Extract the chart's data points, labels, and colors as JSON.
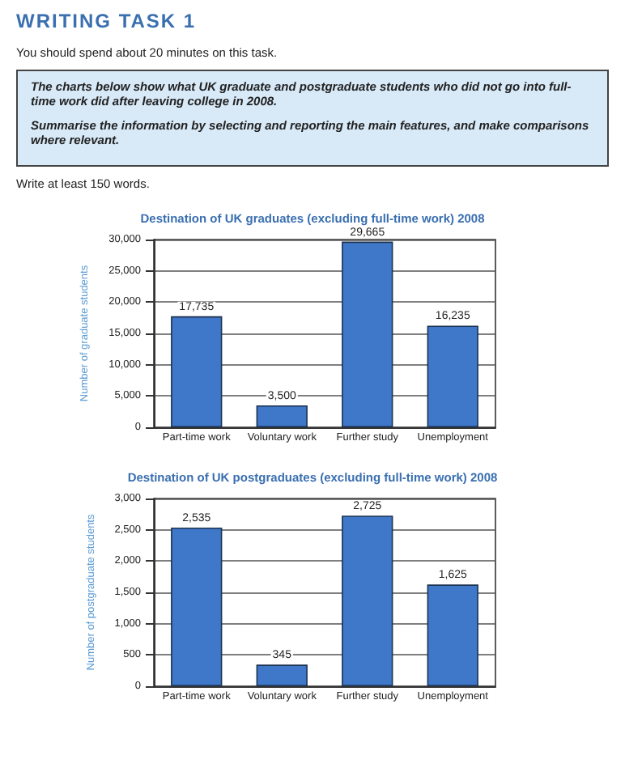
{
  "chart_data": [
    {
      "type": "bar",
      "title": "Destination of UK graduates (excluding full-time work) 2008",
      "ylabel": "Number of graduate students",
      "annotations": [
        "WRITING TASK 1",
        "You should spend about 20 minutes on this task.",
        "The charts below show what UK graduate and postgraduate students who did not go into full-time work did after leaving college in 2008.",
        "Summarise the information by selecting and reporting the main features, and make comparisons where relevant.",
        "Write at least 150 words."
      ],
      "categories": [
        "Part-time work",
        "Voluntary work",
        "Further study",
        "Unemployment"
      ],
      "values": [
        17735,
        3500,
        29665,
        16235
      ],
      "value_labels": [
        "17,735",
        "3,500",
        "29,665",
        "16,235"
      ],
      "color": "#3f77c9",
      "ylim": [
        0,
        30000
      ],
      "yticks": [
        {
          "value": 0,
          "label": "0"
        },
        {
          "value": 5000,
          "label": "5,000"
        },
        {
          "value": 10000,
          "label": "10,000"
        },
        {
          "value": 15000,
          "label": "15,000"
        },
        {
          "value": 20000,
          "label": "20,000"
        },
        {
          "value": 25000,
          "label": "25,000"
        },
        {
          "value": 30000,
          "label": "30,000"
        }
      ],
      "grid": "y"
    },
    {
      "type": "bar",
      "title": "Destination of UK postgraduates (excluding full-time work) 2008",
      "ylabel": "Number of postgraduate students",
      "categories": [
        "Part-time work",
        "Voluntary work",
        "Further study",
        "Unemployment"
      ],
      "values": [
        2535,
        345,
        2725,
        1625
      ],
      "value_labels": [
        "2,535",
        "345",
        "2,725",
        "1,625"
      ],
      "color": "#3f77c9",
      "ylim": [
        0,
        3000
      ],
      "yticks": [
        {
          "value": 0,
          "label": "0"
        },
        {
          "value": 500,
          "label": "500"
        },
        {
          "value": 1000,
          "label": "1,000"
        },
        {
          "value": 1500,
          "label": "1,500"
        },
        {
          "value": 2000,
          "label": "2,000"
        },
        {
          "value": 2500,
          "label": "2,500"
        },
        {
          "value": 3000,
          "label": "3,000"
        }
      ],
      "grid": "y"
    }
  ]
}
